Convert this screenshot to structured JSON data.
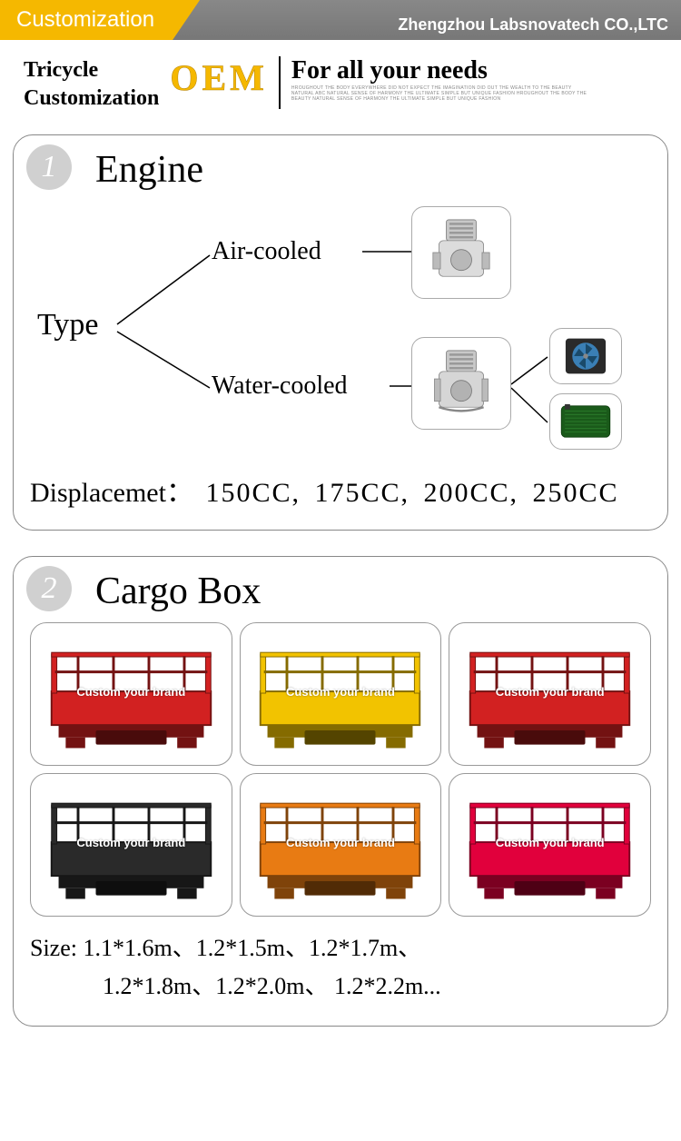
{
  "header": {
    "ribbon": "Customization",
    "company": "Zhengzhou Labsnovatech CO.,LTC",
    "ribbon_color": "#f5b800",
    "bar_color": "#7d7d7d"
  },
  "intro": {
    "line1": "Tricycle",
    "line2": "Customization",
    "oem": "OEM",
    "tagline": "For all your needs",
    "fineprint": "HROUGHOUT THE BODY EVERYWHERE DID NOT EXPECT THE IMAGINATION DID OUT THE WEALTH TO THE BEAUTY NATURAL ABC NATURAL SENSE OF HARMONY THE ULTIMATE SIMPLE BUT UNIQUE FASHION HROUGHOUT THE BODY THE BEAUTY NATURAL SENSE OF HARMONY THE ULTIMATE SIMPLE BUT UNIQUE FASHION",
    "oem_color": "#f5b800"
  },
  "sections": [
    {
      "number": "1",
      "title": "Engine",
      "type_label": "Type",
      "options": {
        "air": "Air-cooled",
        "water": "Water-cooled"
      },
      "displacement_label": "Displacemet：",
      "displacement_values": "150CC,  175CC,  200CC,  250CC"
    },
    {
      "number": "2",
      "title": "Cargo Box",
      "brand_tag": "Custom your brand",
      "colors": [
        "#d22121",
        "#f2c300",
        "#d22121",
        "#2a2a2a",
        "#e87b13",
        "#e1003c"
      ],
      "size_label": "Size:",
      "sizes_line1": "1.1*1.6m、1.2*1.5m、1.2*1.7m、",
      "sizes_line2": "1.2*1.8m、1.2*2.0m、 1.2*2.2m..."
    }
  ]
}
